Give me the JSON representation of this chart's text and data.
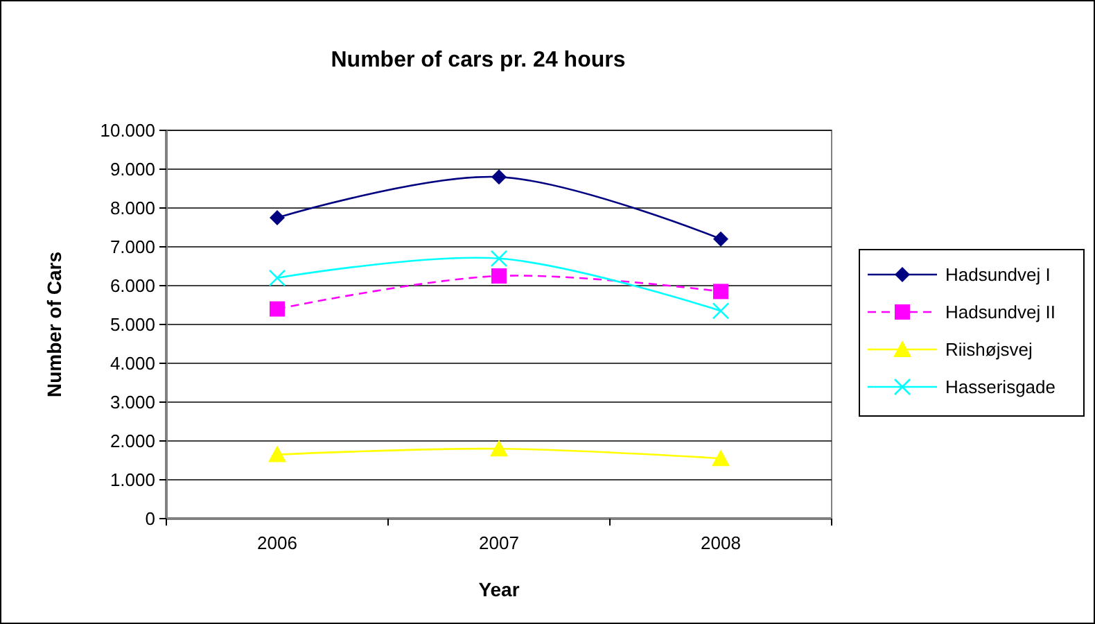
{
  "chart_data": {
    "type": "line",
    "title": "Number of cars pr. 24 hours",
    "xlabel": "Year",
    "ylabel": "Number of Cars",
    "categories": [
      "2006",
      "2007",
      "2008"
    ],
    "series": [
      {
        "name": "Hadsundvej I",
        "color": "#000080",
        "marker": "diamond",
        "line_style": "solid",
        "values": [
          7750,
          8800,
          7200
        ]
      },
      {
        "name": "Hadsundvej II",
        "color": "#ff00ff",
        "marker": "square",
        "line_style": "dashed",
        "values": [
          5400,
          6250,
          5850
        ]
      },
      {
        "name": "Riishøjsvej",
        "color": "#ffff00",
        "marker": "triangle",
        "line_style": "solid",
        "values": [
          1650,
          1800,
          1550
        ]
      },
      {
        "name": "Hasserisgade",
        "color": "#00ffff",
        "marker": "cross",
        "line_style": "solid",
        "values": [
          6200,
          6700,
          5350
        ]
      }
    ],
    "ylim": [
      0,
      10000
    ],
    "yticks": [
      0,
      {
        "value": 1000,
        "label": "1.000"
      },
      {
        "value": 2000,
        "label": "2.000"
      },
      {
        "value": 3000,
        "label": "3.000"
      },
      {
        "value": 4000,
        "label": "4.000"
      },
      {
        "value": 5000,
        "label": "5.000"
      },
      {
        "value": 6000,
        "label": "6.000"
      },
      {
        "value": 7000,
        "label": "7.000"
      },
      {
        "value": 8000,
        "label": "8.000"
      },
      {
        "value": 9000,
        "label": "9.000"
      },
      {
        "value": 10000,
        "label": "10.000"
      }
    ],
    "grid": "y",
    "legend": "right"
  }
}
